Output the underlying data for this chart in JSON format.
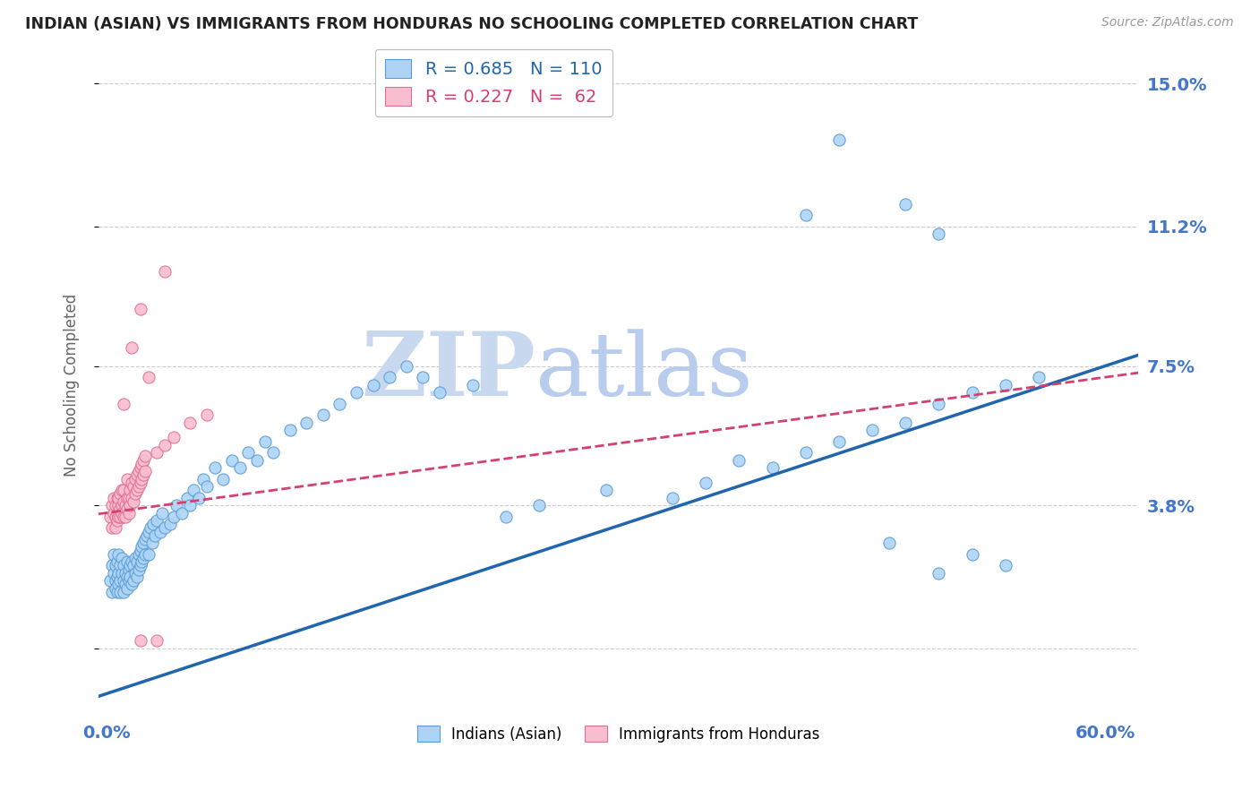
{
  "title": "INDIAN (ASIAN) VS IMMIGRANTS FROM HONDURAS NO SCHOOLING COMPLETED CORRELATION CHART",
  "source": "Source: ZipAtlas.com",
  "ylabel": "No Schooling Completed",
  "ytick_labels": [
    "",
    "3.8%",
    "7.5%",
    "11.2%",
    "15.0%"
  ],
  "ytick_values": [
    0.0,
    0.038,
    0.075,
    0.112,
    0.15
  ],
  "xtick_labels": [
    "0.0%",
    "60.0%"
  ],
  "xtick_positions": [
    0.0,
    0.6
  ],
  "xlim": [
    -0.005,
    0.62
  ],
  "ylim": [
    -0.018,
    0.158
  ],
  "blue_R": 0.685,
  "blue_N": 110,
  "pink_R": 0.227,
  "pink_N": 62,
  "blue_color": "#ADD4F5",
  "blue_edge_color": "#5B9BD5",
  "blue_line_color": "#2166AC",
  "pink_color": "#F9BDD0",
  "pink_edge_color": "#E07090",
  "pink_line_color": "#D44070",
  "grid_color": "#CCCCCC",
  "watermark_zip": "ZIP",
  "watermark_atlas": "atlas",
  "watermark_color_zip": "#C8D8EE",
  "watermark_color_atlas": "#B8CCEE",
  "title_color": "#222222",
  "right_label_color": "#4477CC",
  "blue_scatter": [
    [
      0.002,
      0.018
    ],
    [
      0.003,
      0.022
    ],
    [
      0.003,
      0.015
    ],
    [
      0.004,
      0.02
    ],
    [
      0.004,
      0.025
    ],
    [
      0.005,
      0.018
    ],
    [
      0.005,
      0.022
    ],
    [
      0.005,
      0.016
    ],
    [
      0.006,
      0.019
    ],
    [
      0.006,
      0.023
    ],
    [
      0.006,
      0.015
    ],
    [
      0.007,
      0.02
    ],
    [
      0.007,
      0.025
    ],
    [
      0.007,
      0.017
    ],
    [
      0.008,
      0.022
    ],
    [
      0.008,
      0.018
    ],
    [
      0.008,
      0.015
    ],
    [
      0.009,
      0.02
    ],
    [
      0.009,
      0.024
    ],
    [
      0.01,
      0.018
    ],
    [
      0.01,
      0.022
    ],
    [
      0.01,
      0.015
    ],
    [
      0.011,
      0.02
    ],
    [
      0.011,
      0.017
    ],
    [
      0.012,
      0.019
    ],
    [
      0.012,
      0.023
    ],
    [
      0.012,
      0.016
    ],
    [
      0.013,
      0.021
    ],
    [
      0.013,
      0.018
    ],
    [
      0.014,
      0.022
    ],
    [
      0.014,
      0.019
    ],
    [
      0.015,
      0.023
    ],
    [
      0.015,
      0.017
    ],
    [
      0.016,
      0.022
    ],
    [
      0.016,
      0.018
    ],
    [
      0.017,
      0.024
    ],
    [
      0.017,
      0.02
    ],
    [
      0.018,
      0.023
    ],
    [
      0.018,
      0.019
    ],
    [
      0.019,
      0.025
    ],
    [
      0.019,
      0.021
    ],
    [
      0.02,
      0.026
    ],
    [
      0.02,
      0.022
    ],
    [
      0.021,
      0.027
    ],
    [
      0.021,
      0.023
    ],
    [
      0.022,
      0.028
    ],
    [
      0.022,
      0.024
    ],
    [
      0.023,
      0.029
    ],
    [
      0.023,
      0.025
    ],
    [
      0.024,
      0.03
    ],
    [
      0.025,
      0.031
    ],
    [
      0.025,
      0.025
    ],
    [
      0.026,
      0.032
    ],
    [
      0.027,
      0.028
    ],
    [
      0.028,
      0.033
    ],
    [
      0.029,
      0.03
    ],
    [
      0.03,
      0.034
    ],
    [
      0.032,
      0.031
    ],
    [
      0.033,
      0.036
    ],
    [
      0.035,
      0.032
    ],
    [
      0.038,
      0.033
    ],
    [
      0.04,
      0.035
    ],
    [
      0.042,
      0.038
    ],
    [
      0.045,
      0.036
    ],
    [
      0.048,
      0.04
    ],
    [
      0.05,
      0.038
    ],
    [
      0.052,
      0.042
    ],
    [
      0.055,
      0.04
    ],
    [
      0.058,
      0.045
    ],
    [
      0.06,
      0.043
    ],
    [
      0.065,
      0.048
    ],
    [
      0.07,
      0.045
    ],
    [
      0.075,
      0.05
    ],
    [
      0.08,
      0.048
    ],
    [
      0.085,
      0.052
    ],
    [
      0.09,
      0.05
    ],
    [
      0.095,
      0.055
    ],
    [
      0.1,
      0.052
    ],
    [
      0.11,
      0.058
    ],
    [
      0.12,
      0.06
    ],
    [
      0.13,
      0.062
    ],
    [
      0.14,
      0.065
    ],
    [
      0.15,
      0.068
    ],
    [
      0.16,
      0.07
    ],
    [
      0.17,
      0.072
    ],
    [
      0.18,
      0.075
    ],
    [
      0.19,
      0.072
    ],
    [
      0.2,
      0.068
    ],
    [
      0.22,
      0.07
    ],
    [
      0.24,
      0.035
    ],
    [
      0.26,
      0.038
    ],
    [
      0.3,
      0.042
    ],
    [
      0.34,
      0.04
    ],
    [
      0.36,
      0.044
    ],
    [
      0.38,
      0.05
    ],
    [
      0.4,
      0.048
    ],
    [
      0.42,
      0.052
    ],
    [
      0.44,
      0.055
    ],
    [
      0.46,
      0.058
    ],
    [
      0.48,
      0.06
    ],
    [
      0.5,
      0.065
    ],
    [
      0.52,
      0.068
    ],
    [
      0.54,
      0.07
    ],
    [
      0.56,
      0.072
    ],
    [
      0.47,
      0.028
    ],
    [
      0.5,
      0.02
    ],
    [
      0.52,
      0.025
    ],
    [
      0.54,
      0.022
    ],
    [
      0.42,
      0.115
    ],
    [
      0.44,
      0.135
    ],
    [
      0.48,
      0.118
    ],
    [
      0.5,
      0.11
    ]
  ],
  "pink_scatter": [
    [
      0.002,
      0.035
    ],
    [
      0.003,
      0.038
    ],
    [
      0.003,
      0.032
    ],
    [
      0.004,
      0.036
    ],
    [
      0.004,
      0.04
    ],
    [
      0.005,
      0.035
    ],
    [
      0.005,
      0.038
    ],
    [
      0.005,
      0.032
    ],
    [
      0.006,
      0.036
    ],
    [
      0.006,
      0.04
    ],
    [
      0.006,
      0.034
    ],
    [
      0.007,
      0.038
    ],
    [
      0.007,
      0.035
    ],
    [
      0.007,
      0.04
    ],
    [
      0.008,
      0.037
    ],
    [
      0.008,
      0.041
    ],
    [
      0.008,
      0.035
    ],
    [
      0.009,
      0.038
    ],
    [
      0.009,
      0.042
    ],
    [
      0.009,
      0.036
    ],
    [
      0.01,
      0.039
    ],
    [
      0.01,
      0.035
    ],
    [
      0.01,
      0.042
    ],
    [
      0.011,
      0.038
    ],
    [
      0.011,
      0.035
    ],
    [
      0.012,
      0.04
    ],
    [
      0.012,
      0.045
    ],
    [
      0.012,
      0.037
    ],
    [
      0.013,
      0.04
    ],
    [
      0.013,
      0.036
    ],
    [
      0.014,
      0.042
    ],
    [
      0.014,
      0.038
    ],
    [
      0.015,
      0.044
    ],
    [
      0.015,
      0.04
    ],
    [
      0.016,
      0.043
    ],
    [
      0.016,
      0.039
    ],
    [
      0.017,
      0.045
    ],
    [
      0.017,
      0.041
    ],
    [
      0.018,
      0.046
    ],
    [
      0.018,
      0.042
    ],
    [
      0.019,
      0.047
    ],
    [
      0.019,
      0.043
    ],
    [
      0.02,
      0.048
    ],
    [
      0.02,
      0.044
    ],
    [
      0.021,
      0.049
    ],
    [
      0.021,
      0.045
    ],
    [
      0.022,
      0.05
    ],
    [
      0.022,
      0.046
    ],
    [
      0.023,
      0.051
    ],
    [
      0.023,
      0.047
    ],
    [
      0.03,
      0.052
    ],
    [
      0.035,
      0.054
    ],
    [
      0.04,
      0.056
    ],
    [
      0.05,
      0.06
    ],
    [
      0.06,
      0.062
    ],
    [
      0.015,
      0.08
    ],
    [
      0.02,
      0.09
    ],
    [
      0.035,
      0.1
    ],
    [
      0.01,
      0.065
    ],
    [
      0.025,
      0.072
    ],
    [
      0.02,
      0.002
    ],
    [
      0.03,
      0.002
    ]
  ]
}
